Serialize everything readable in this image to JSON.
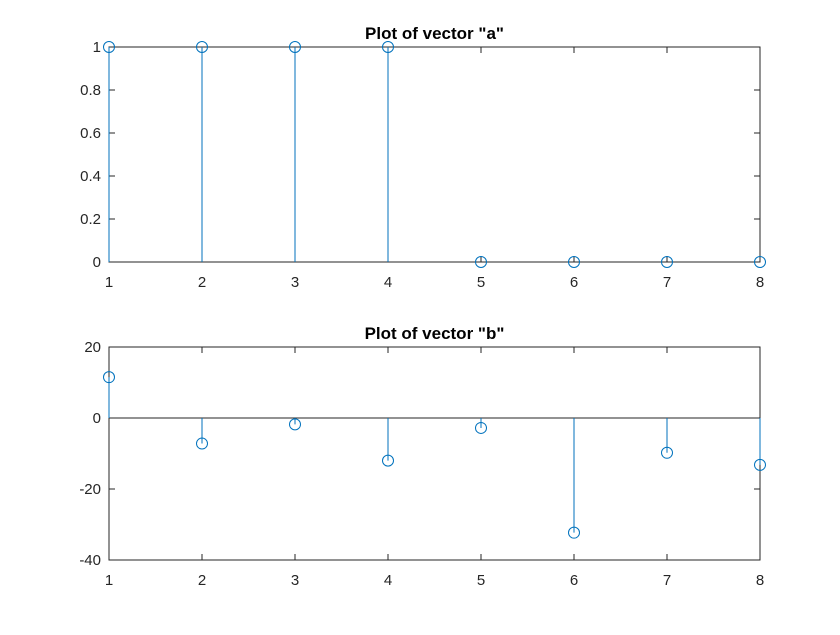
{
  "chart_data": [
    {
      "type": "stem",
      "title": "Plot of vector \"a\"",
      "xlabel": "",
      "ylabel": "",
      "x": [
        1,
        2,
        3,
        4,
        5,
        6,
        7,
        8
      ],
      "values": [
        1,
        1,
        1,
        1,
        0,
        0,
        0,
        0
      ],
      "xlim": [
        1,
        8
      ],
      "ylim": [
        0,
        1
      ],
      "xticks": [
        "1",
        "2",
        "3",
        "4",
        "5",
        "6",
        "7",
        "8"
      ],
      "yticks": [
        0,
        0.2,
        0.4,
        0.6,
        0.8,
        1
      ],
      "ytick_labels": [
        "0",
        "0.2",
        "0.4",
        "0.6",
        "0.8",
        "1"
      ],
      "grid": false,
      "marker": "open-circle",
      "color": "#0072BD"
    },
    {
      "type": "stem",
      "title": "Plot of vector \"b\"",
      "xlabel": "",
      "ylabel": "",
      "x": [
        1,
        2,
        3,
        4,
        5,
        6,
        7,
        8
      ],
      "values": [
        11.5,
        -7.2,
        -1.8,
        -12.0,
        -2.8,
        -32.3,
        -9.8,
        -13.2
      ],
      "xlim": [
        1,
        8
      ],
      "ylim": [
        -40,
        20
      ],
      "xticks": [
        "1",
        "2",
        "3",
        "4",
        "5",
        "6",
        "7",
        "8"
      ],
      "yticks": [
        -40,
        -20,
        0,
        20
      ],
      "ytick_labels": [
        "-40",
        "-20",
        "0",
        "20"
      ],
      "grid": false,
      "marker": "open-circle",
      "color": "#0072BD"
    }
  ]
}
